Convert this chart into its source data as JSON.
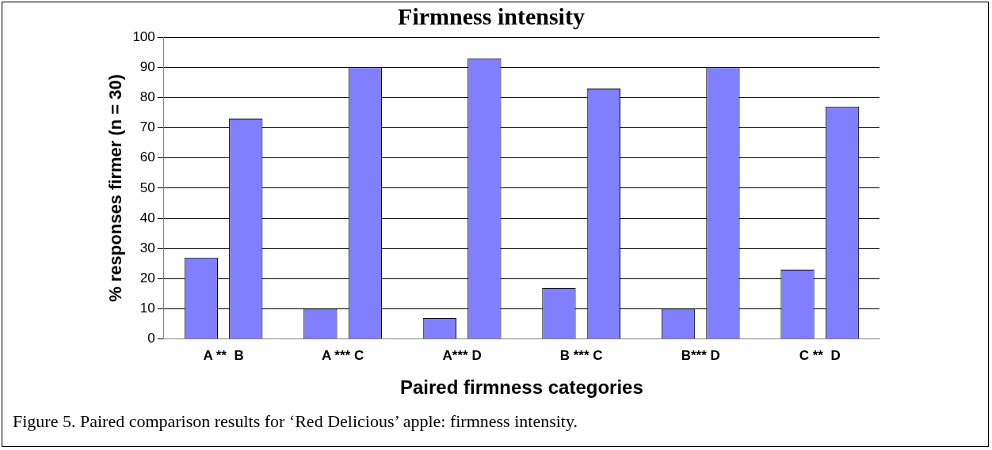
{
  "chart_data": {
    "type": "bar",
    "title": "Firmness intensity",
    "xlabel": "Paired firmness categories",
    "ylabel": "% responses firmer (n = 30)",
    "categories": [
      "A **  B",
      "A *** C",
      "A*** D",
      "B *** C",
      "B*** D",
      "C **  D"
    ],
    "series": [
      {
        "color": "#8080ff",
        "values": [
          27,
          10,
          7,
          17,
          10,
          23
        ]
      },
      {
        "color": "#8080ff",
        "values": [
          73,
          90,
          93,
          83,
          90,
          77
        ]
      }
    ],
    "ylim": [
      0,
      100
    ],
    "yticks": [
      0,
      10,
      20,
      30,
      40,
      50,
      60,
      70,
      80,
      90,
      100
    ],
    "grid": "y",
    "legend": false,
    "annotations": [
      "Figure 5.  Paired comparison results for ‘Red Delicious’ apple:  firmness intensity."
    ]
  }
}
